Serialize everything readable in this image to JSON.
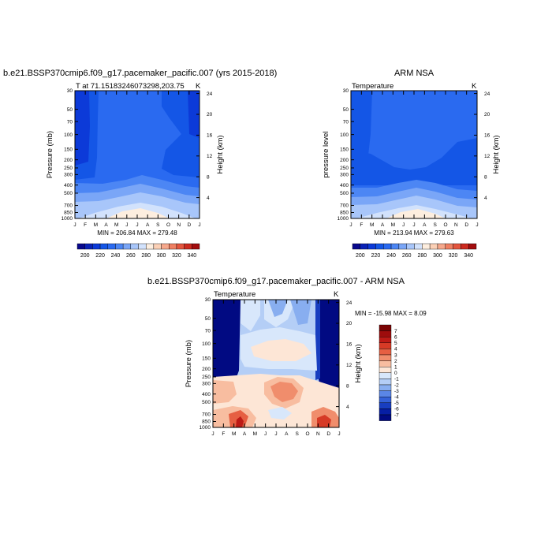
{
  "chart_data": [
    {
      "type": "heatmap",
      "title": "b.e21.BSSP370cmip6.f09_g17.pacemaker_pacific.007 (yrs 2015-2018)",
      "left_label": "T at 71.15183246073298,203.75",
      "units": "K",
      "ylabel": "Pressure (mb)",
      "ylabel_right": "Height (km)",
      "x_ticks": [
        "J",
        "F",
        "M",
        "A",
        "M",
        "J",
        "J",
        "A",
        "S",
        "O",
        "N",
        "D",
        "J"
      ],
      "p_ticks": [
        "30",
        "50",
        "70",
        "100",
        "150",
        "200",
        "250",
        "300",
        "400",
        "500",
        "700",
        "850",
        "1000"
      ],
      "h_ticks": [
        "24",
        "20",
        "16",
        "12",
        "8",
        "4"
      ],
      "stats": "MIN = 206.84  MAX = 279.48",
      "colorbar_labels": [
        "200",
        "220",
        "240",
        "260",
        "280",
        "300",
        "320",
        "340"
      ]
    },
    {
      "type": "heatmap",
      "title": "ARM NSA",
      "left_label": "Temperature",
      "units": "K",
      "ylabel": "pressure level",
      "ylabel_right": "Height (km)",
      "x_ticks": [
        "J",
        "F",
        "M",
        "A",
        "M",
        "J",
        "J",
        "A",
        "S",
        "O",
        "N",
        "D",
        "J"
      ],
      "p_ticks": [
        "30",
        "50",
        "70",
        "100",
        "150",
        "200",
        "250",
        "300",
        "400",
        "500",
        "700",
        "850",
        "1000"
      ],
      "h_ticks": [
        "24",
        "20",
        "16",
        "12",
        "8",
        "4"
      ],
      "stats": "MIN = 213.94  MAX = 279.63",
      "colorbar_labels": [
        "200",
        "220",
        "240",
        "260",
        "280",
        "300",
        "320",
        "340"
      ]
    },
    {
      "type": "heatmap",
      "title": "b.e21.BSSP370cmip6.f09_g17.pacemaker_pacific.007 - ARM NSA",
      "left_label": "Temperature",
      "units": "K",
      "ylabel": "Pressure (mb)",
      "ylabel_right": "Height (km)",
      "x_ticks": [
        "J",
        "F",
        "M",
        "A",
        "M",
        "J",
        "J",
        "A",
        "S",
        "O",
        "N",
        "D",
        "J"
      ],
      "p_ticks": [
        "30",
        "50",
        "70",
        "100",
        "150",
        "200",
        "250",
        "300",
        "400",
        "500",
        "700",
        "850",
        "1000"
      ],
      "h_ticks": [
        "24",
        "20",
        "16",
        "12",
        "8",
        "4"
      ],
      "stats": "MIN = -15.98  MAX =   8.09",
      "colorbar_labels": [
        "7",
        "6",
        "5",
        "4",
        "3",
        "2",
        "1",
        "0",
        "-1",
        "-2",
        "-3",
        "-4",
        "-5",
        "-6",
        "-7"
      ]
    }
  ],
  "colors": {
    "temp_scale": [
      "#08088c",
      "#0a22b6",
      "#0c3ad8",
      "#1456e6",
      "#2a6af0",
      "#4c86f4",
      "#7aa6f7",
      "#a8c6fa",
      "#d2e2fc",
      "#fdeedf",
      "#fbd0b6",
      "#f6a88c",
      "#ef7f62",
      "#e4553e",
      "#cc2a1f",
      "#a30d0e"
    ],
    "diff_scale": [
      "#7a0404",
      "#9e0c0c",
      "#bd1a16",
      "#d63a26",
      "#e65f42",
      "#f08d6c",
      "#f8bda0",
      "#fde6d6",
      "#d8e7fb",
      "#b4cef6",
      "#88aef0",
      "#5a86e6",
      "#3461d8",
      "#183ec0",
      "#061ea4",
      "#010a82"
    ]
  }
}
